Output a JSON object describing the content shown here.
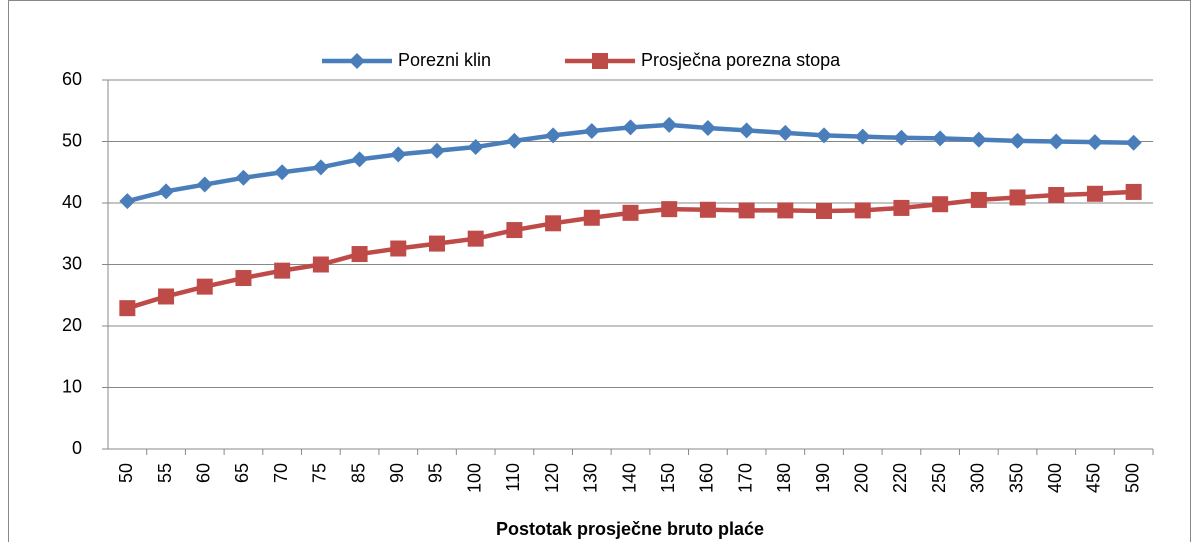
{
  "chart_data": {
    "type": "line",
    "x_label": "Postotak prosječne bruto plaće",
    "categories": [
      "50",
      "55",
      "60",
      "65",
      "70",
      "75",
      "85",
      "90",
      "95",
      "100",
      "110",
      "120",
      "130",
      "140",
      "150",
      "160",
      "170",
      "180",
      "190",
      "200",
      "220",
      "250",
      "300",
      "350",
      "400",
      "450",
      "500"
    ],
    "series": [
      {
        "name": "Porezni klin",
        "color": "#4a7ebb",
        "marker": "diamond",
        "values": [
          40.3,
          41.9,
          43.0,
          44.1,
          45.0,
          45.8,
          47.1,
          47.9,
          48.5,
          49.1,
          50.1,
          51.0,
          51.7,
          52.3,
          52.7,
          52.2,
          51.8,
          51.4,
          51.0,
          50.8,
          50.6,
          50.5,
          50.3,
          50.1,
          50.0,
          49.9,
          49.8
        ]
      },
      {
        "name": "Prosječna porezna stopa",
        "color": "#be4b48",
        "marker": "square",
        "values": [
          22.9,
          24.8,
          26.4,
          27.8,
          29.0,
          30.0,
          31.7,
          32.6,
          33.4,
          34.2,
          35.6,
          36.7,
          37.6,
          38.4,
          39.0,
          38.9,
          38.8,
          38.8,
          38.7,
          38.8,
          39.2,
          39.8,
          40.5,
          40.9,
          41.3,
          41.5,
          41.8
        ]
      }
    ],
    "ylim": [
      0,
      60
    ],
    "yticks": [
      0,
      10,
      20,
      30,
      40,
      50,
      60
    ],
    "grid": true,
    "legend": "top"
  }
}
